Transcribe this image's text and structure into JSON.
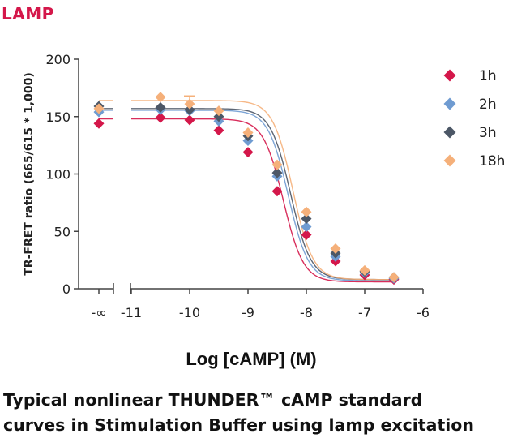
{
  "chart_data": {
    "type": "scatter",
    "title": "LAMP",
    "xlabel": "Log [cAMP] (M)",
    "ylabel": "TR-FRET ratio (665/615 * 1,000)",
    "ylim": [
      0,
      200
    ],
    "xlim": [
      -11,
      -6
    ],
    "y_ticks": [
      "0",
      "50",
      "100",
      "150",
      "200"
    ],
    "x_ticks": [
      "-∞",
      "-11",
      "-10",
      "-9",
      "-8",
      "-7",
      "-6"
    ],
    "legend_position": "right",
    "x": [
      -10.5,
      -10,
      -9.5,
      -9,
      -8.5,
      -8,
      -7.5,
      -7,
      -6.5
    ],
    "series": [
      {
        "name": "1h",
        "color": "#d4174a",
        "zero_value": 144,
        "values": [
          149,
          147,
          138,
          119,
          85,
          47,
          24,
          12,
          8
        ]
      },
      {
        "name": "2h",
        "color": "#6f9bd1",
        "zero_value": 154,
        "values": [
          156,
          155,
          146,
          129,
          98,
          54,
          28,
          14,
          9
        ]
      },
      {
        "name": "3h",
        "color": "#4c5766",
        "zero_value": 159,
        "values": [
          158,
          156,
          150,
          133,
          101,
          61,
          31,
          15,
          10
        ]
      },
      {
        "name": "18h",
        "color": "#f5b07a",
        "zero_value": 157,
        "values": [
          167,
          161,
          155,
          136,
          108,
          67,
          35,
          16,
          10
        ]
      }
    ],
    "error_bar": {
      "series": "18h",
      "x": -10,
      "low": 154,
      "high": 168
    }
  },
  "caption": {
    "line1": "Typical nonlinear THUNDER™ cAMP standard",
    "line2": "curves in Stimulation Buffer using lamp excitation"
  }
}
